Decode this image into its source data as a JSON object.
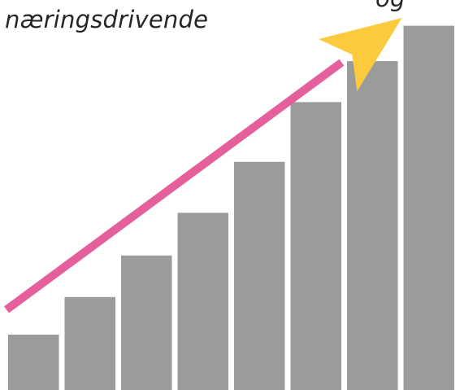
{
  "caption": {
    "line1": "og",
    "line2": "næringsdrivende"
  },
  "chart_data": {
    "type": "bar",
    "categories": [
      "",
      "",
      "",
      "",
      "",
      "",
      "",
      ""
    ],
    "values": [
      1.0,
      1.68,
      2.43,
      3.2,
      4.12,
      5.2,
      5.94,
      6.58
    ],
    "ylim": [
      0,
      7
    ],
    "grid": false,
    "legend": "none",
    "bar_color": "#9b9b9b",
    "trend_arrow": {
      "direction": "up",
      "from": [
        0.0,
        1.45
      ],
      "to": [
        7.0,
        6.72
      ],
      "shaft_color": "#e5609b",
      "head_color": "#fbcb3d"
    }
  }
}
